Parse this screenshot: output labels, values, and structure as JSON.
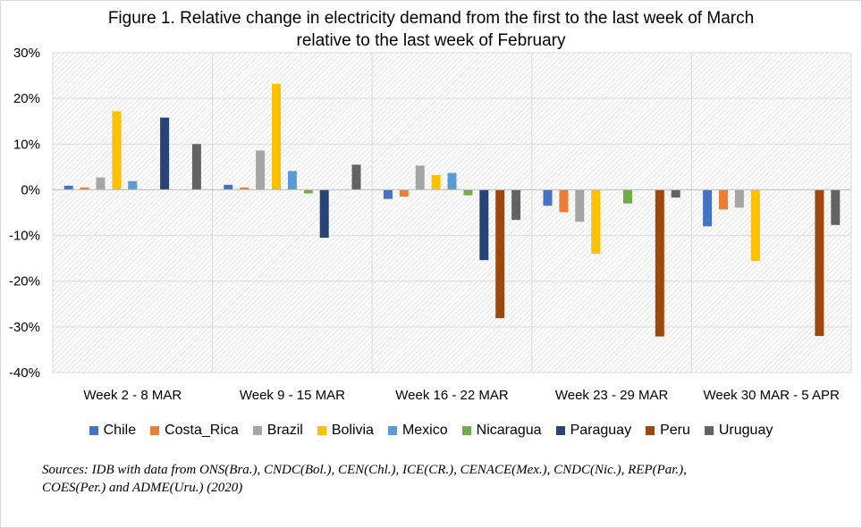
{
  "chart_data": {
    "type": "bar",
    "title_line1": "Figure 1. Relative change in electricity demand from the first to the last week of March",
    "title_line2": "relative to the last week of February",
    "xlabel": "",
    "ylabel": "",
    "ylim": [
      -40,
      30
    ],
    "yticks": [
      30,
      20,
      10,
      0,
      -10,
      -20,
      -30,
      -40
    ],
    "ytick_labels": [
      "30%",
      "20%",
      "10%",
      "0%",
      "-10%",
      "-20%",
      "-30%",
      "-40%"
    ],
    "categories": [
      "Week 2 - 8 MAR",
      "Week 9 - 15 MAR",
      "Week 16 - 22 MAR",
      "Week 23 - 29 MAR",
      "Week 30 MAR - 5 APR"
    ],
    "series": [
      {
        "name": "Chile",
        "color": "#4472c4",
        "values": [
          0.9,
          1.1,
          -2.0,
          -3.5,
          -8.0
        ]
      },
      {
        "name": "Costa_Rica",
        "color": "#ed7d31",
        "values": [
          0.5,
          0.5,
          -1.5,
          -4.9,
          -4.3
        ]
      },
      {
        "name": "Brazil",
        "color": "#a5a5a5",
        "values": [
          2.7,
          8.6,
          5.3,
          -7.0,
          -3.9
        ]
      },
      {
        "name": "Bolivia",
        "color": "#ffc000",
        "values": [
          17.2,
          23.2,
          3.2,
          -14.0,
          -15.6
        ]
      },
      {
        "name": "Mexico",
        "color": "#5b9bd5",
        "values": [
          1.9,
          4.1,
          3.7,
          null,
          null
        ]
      },
      {
        "name": "Nicaragua",
        "color": "#70ad47",
        "values": [
          null,
          -0.8,
          -1.2,
          -3.0,
          null
        ]
      },
      {
        "name": "Paraguay",
        "color": "#264478",
        "values": [
          15.8,
          -10.5,
          -15.4,
          null,
          null
        ]
      },
      {
        "name": "Peru",
        "color": "#9e480e",
        "values": [
          null,
          null,
          -28.1,
          -32.1,
          -32.0
        ]
      },
      {
        "name": "Uruguay",
        "color": "#636363",
        "values": [
          10.0,
          5.5,
          -6.6,
          -1.7,
          -7.7
        ]
      }
    ],
    "legend_position": "bottom",
    "grid": true
  },
  "footer": {
    "sources_line1": "Sources: IDB with data from ONS(Bra.), CNDC(Bol.), CEN(Chl.), ICE(CR.), CENACE(Mex.), CNDC(Nic.), REP(Par.),",
    "sources_line2": "COES(Per.) and ADME(Uru.) (2020)"
  }
}
